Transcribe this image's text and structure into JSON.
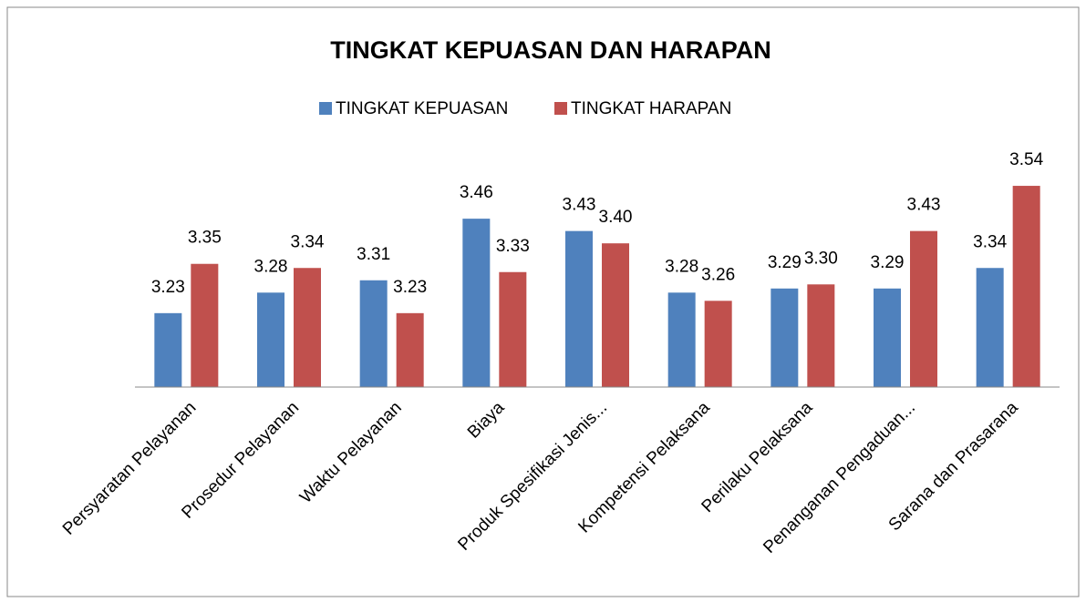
{
  "chart_data": {
    "type": "bar",
    "title": "TINGKAT KEPUASAN DAN HARAPAN",
    "categories": [
      "Persyaratan Pelayanan",
      "Prosedur Pelayanan",
      "Waktu Pelayanan",
      "Biaya",
      "Produk Spesifikasi Jenis...",
      "Kompetensi Pelaksana",
      "Perilaku Pelaksana",
      "Penanganan Pengaduan...",
      "Sarana dan Prasarana"
    ],
    "series": [
      {
        "name": "TINGKAT KEPUASAN",
        "color": "#4f81bd",
        "values": [
          3.23,
          3.28,
          3.31,
          3.46,
          3.43,
          3.28,
          3.29,
          3.29,
          3.34
        ],
        "value_labels": [
          "3.23",
          "3.28",
          "3.31",
          "3.46",
          "3.43",
          "3.28",
          "3.29",
          "3.29",
          "3.34"
        ]
      },
      {
        "name": "TINGKAT HARAPAN",
        "color": "#c0504d",
        "values": [
          3.35,
          3.34,
          3.23,
          3.33,
          3.4,
          3.26,
          3.3,
          3.43,
          3.54
        ],
        "value_labels": [
          "3.35",
          "3.34",
          "3.23",
          "3.33",
          "3.40",
          "3.26",
          "3.30",
          "3.43",
          "3.54"
        ]
      }
    ],
    "ylim": [
      3.05,
      3.6
    ],
    "legend": "top"
  }
}
